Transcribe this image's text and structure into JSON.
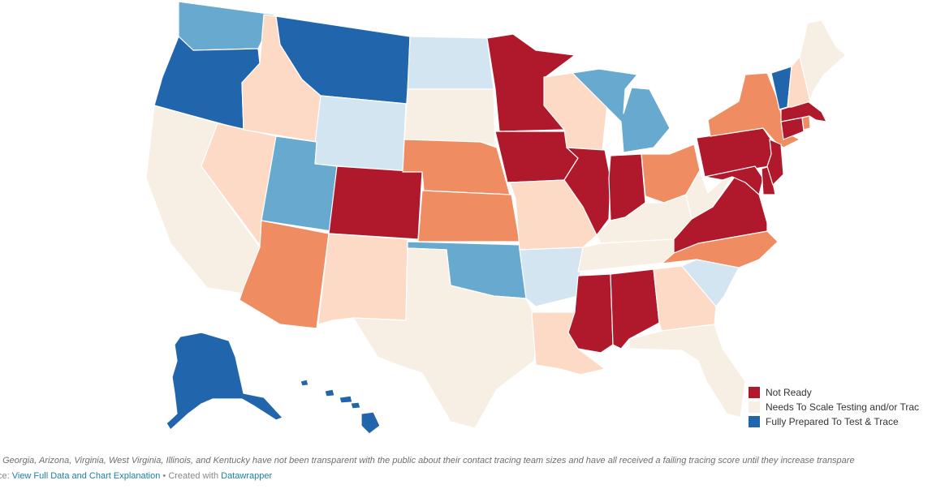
{
  "legend": {
    "items": [
      {
        "label": "Not Ready",
        "color": "#b0182b"
      },
      {
        "label": "Needs To Scale Testing and/or Trac",
        "color": "#f8efe4"
      },
      {
        "label": "Fully Prepared To Test & Trace",
        "color": "#2166ac"
      }
    ]
  },
  "colors": {
    "not_ready": "#b0182b",
    "orange": "#ef8c62",
    "peach": "#fcdac6",
    "cream": "#f8efe4",
    "pale_blue": "#d3e5f1",
    "mid_blue": "#67a9cf",
    "dark_blue": "#2166ac"
  },
  "states": {
    "WA": "mid_blue",
    "OR": "dark_blue",
    "CA": "cream",
    "NV": "peach",
    "ID": "peach",
    "MT": "dark_blue",
    "WY": "pale_blue",
    "UT": "mid_blue",
    "AZ": "orange",
    "CO": "not_ready",
    "NM": "peach",
    "ND": "pale_blue",
    "SD": "cream",
    "NE": "orange",
    "KS": "orange",
    "OK": "mid_blue",
    "TX": "cream",
    "MN": "not_ready",
    "IA": "not_ready",
    "MO": "peach",
    "AR": "pale_blue",
    "LA": "peach",
    "WI": "peach",
    "IL": "not_ready",
    "MS": "not_ready",
    "MI": "mid_blue",
    "IN": "not_ready",
    "OH": "orange",
    "KY": "cream",
    "TN": "cream",
    "AL": "not_ready",
    "GA": "peach",
    "FL": "cream",
    "SC": "pale_blue",
    "NC": "orange",
    "VA": "not_ready",
    "WV": "cream",
    "PA": "not_ready",
    "NY": "orange",
    "MD": "not_ready",
    "DE": "not_ready",
    "NJ": "not_ready",
    "CT": "not_ready",
    "RI": "orange",
    "MA": "not_ready",
    "VT": "dark_blue",
    "NH": "peach",
    "ME": "cream",
    "AK": "dark_blue",
    "HI": "dark_blue"
  },
  "footnote": {
    "prefix": ": ",
    "text": "Georgia, Arizona, Virginia, West Virginia, Illinois, and Kentucky have not been transparent with the public about their contact tracing team sizes and have all received a failing tracing score until they increase transpare"
  },
  "source": {
    "prefix": "ce: ",
    "link_label": "View Full Data and Chart Explanation",
    "separator": " • Created with ",
    "credit_label": "Datawrapper"
  }
}
